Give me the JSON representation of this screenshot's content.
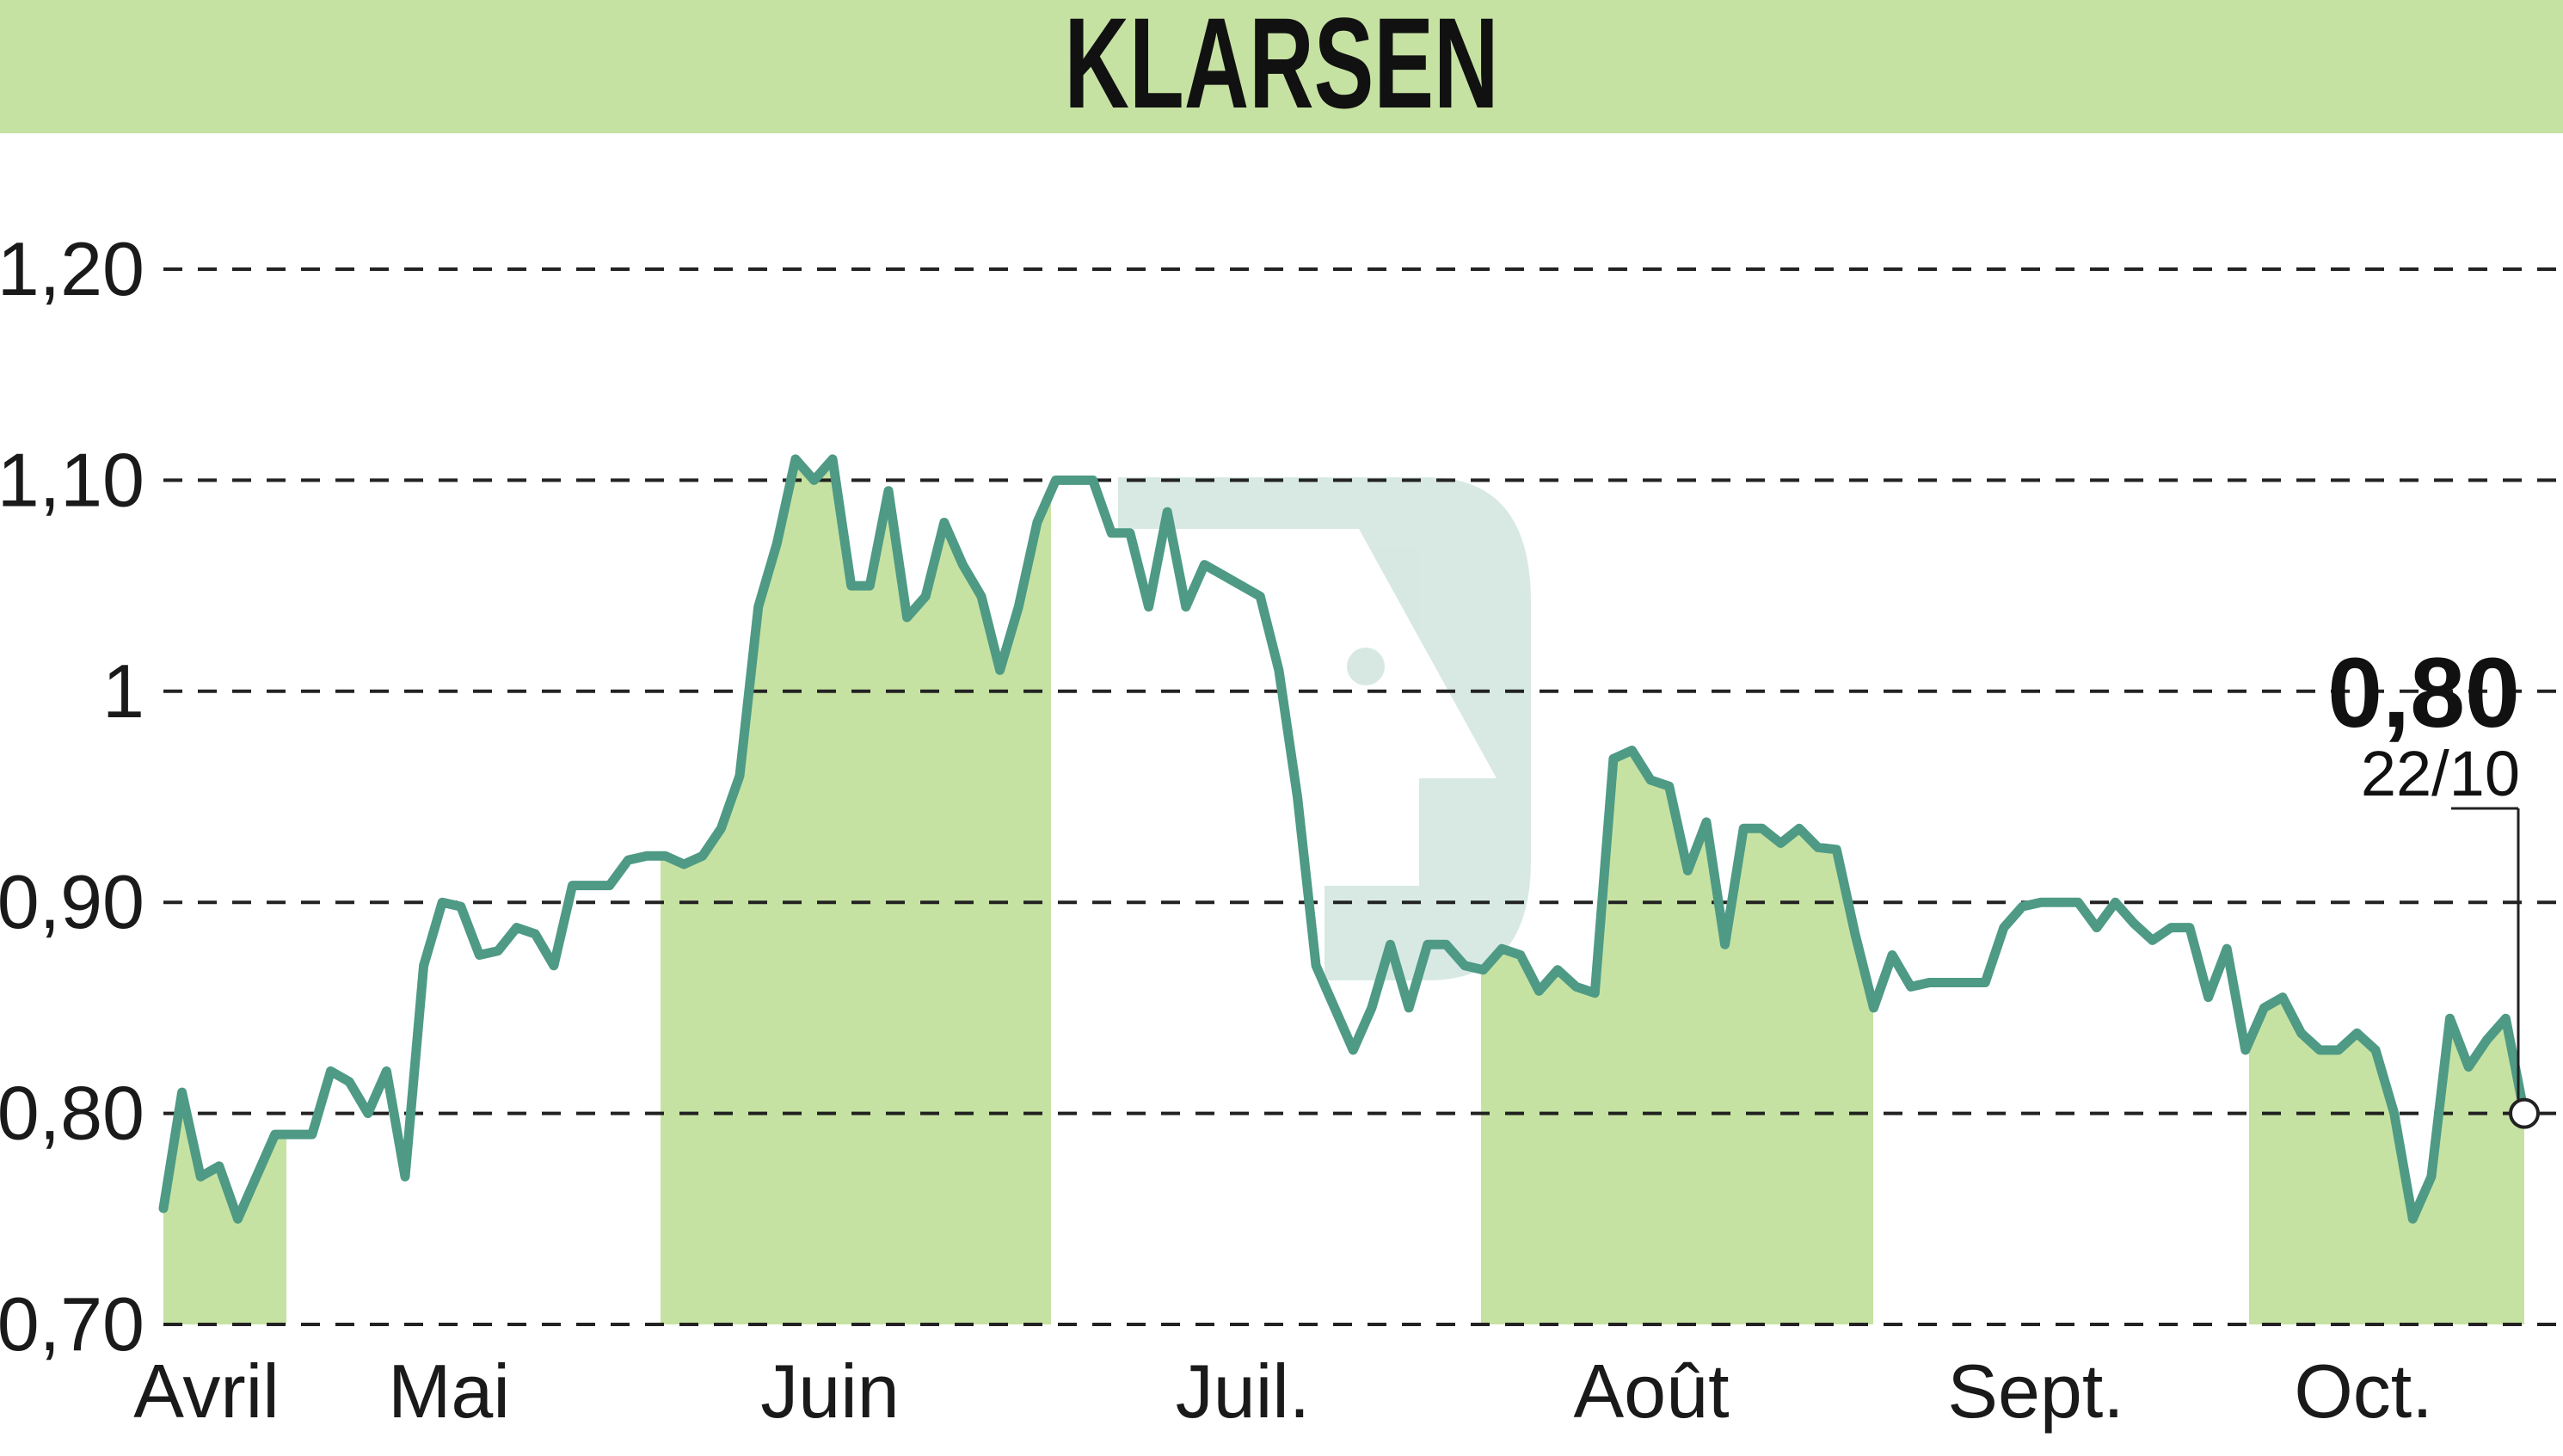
{
  "header": {
    "title": "KLARSEN"
  },
  "colors": {
    "header_bg": "#c6e2a2",
    "month_band": "#c6e2a2",
    "line": "#4e9a85",
    "grid": "#222222",
    "text": "#1a1a1a"
  },
  "chart_data": {
    "type": "line",
    "title": "KLARSEN",
    "xlabel": "",
    "ylabel": "",
    "ylim": [
      0.7,
      1.2
    ],
    "yticks": [
      {
        "value": 1.2,
        "label": "1,20"
      },
      {
        "value": 1.1,
        "label": "1,10"
      },
      {
        "value": 1.0,
        "label": "1"
      },
      {
        "value": 0.9,
        "label": "0,90"
      },
      {
        "value": 0.8,
        "label": "0,80"
      },
      {
        "value": 0.7,
        "label": "0,70"
      }
    ],
    "grid": true,
    "months": [
      "Avril",
      "Mai",
      "Juin",
      "Juil.",
      "Août",
      "Sept.",
      "Oct."
    ],
    "shaded_months": [
      "Avril",
      "Juin",
      "Août",
      "Oct."
    ],
    "series": [
      {
        "values": [
          0.755,
          0.81,
          0.77,
          0.775,
          0.75,
          0.77,
          0.79,
          0.79,
          0.79,
          0.82,
          0.815,
          0.8,
          0.82,
          0.77,
          0.87,
          0.9,
          0.898,
          0.875,
          0.877,
          0.888,
          0.885,
          0.87,
          0.908,
          0.908,
          0.908,
          0.92,
          0.922,
          0.922,
          0.918,
          0.922,
          0.935,
          0.96,
          1.04,
          1.07,
          1.11,
          1.1,
          1.11,
          1.05,
          1.05,
          1.095,
          1.035,
          1.045,
          1.08,
          1.06,
          1.045,
          1.01,
          1.04,
          1.08,
          1.1,
          1.1,
          1.1,
          1.075,
          1.075,
          1.04,
          1.085,
          1.04,
          1.06,
          1.055,
          1.05,
          1.045,
          1.01,
          0.95,
          0.87,
          0.85,
          0.83,
          0.85,
          0.88,
          0.85,
          0.88,
          0.88,
          0.87,
          0.868,
          0.878,
          0.875,
          0.858,
          0.868,
          0.86,
          0.857,
          0.968,
          0.972,
          0.958,
          0.955,
          0.915,
          0.938,
          0.88,
          0.935,
          0.935,
          0.928,
          0.935,
          0.926,
          0.925,
          0.885,
          0.85,
          0.875,
          0.86,
          0.862,
          0.862,
          0.862,
          0.862,
          0.888,
          0.898,
          0.9,
          0.9,
          0.9,
          0.888,
          0.9,
          0.89,
          0.882,
          0.888,
          0.888,
          0.855,
          0.878,
          0.83,
          0.85,
          0.855,
          0.838,
          0.83,
          0.83,
          0.838,
          0.83,
          0.8,
          0.75,
          0.77,
          0.845,
          0.822,
          0.835,
          0.845,
          0.8
        ]
      }
    ],
    "last_value": {
      "label": "0,80",
      "date": "22/10",
      "value": 0.8
    }
  }
}
